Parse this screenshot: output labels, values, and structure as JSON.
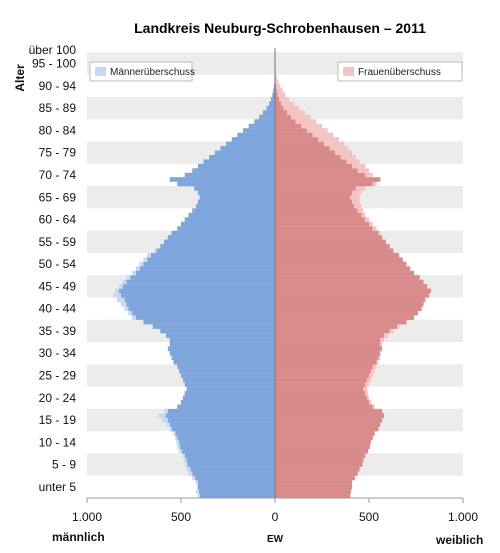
{
  "chart_data": {
    "type": "bar",
    "orientation": "horizontal",
    "title": "Landkreis Neuburg-Schrobenhausen – 2011",
    "ylabel": "Alter",
    "xlabel": "EW",
    "left_label": "männlich",
    "right_label": "weiblich",
    "xlim": [
      -1000,
      1000
    ],
    "x_ticks": [
      {
        "value": -1000,
        "label": "1.000"
      },
      {
        "value": -500,
        "label": "500"
      },
      {
        "value": 0,
        "label": "0"
      },
      {
        "value": 500,
        "label": "500"
      },
      {
        "value": 1000,
        "label": "1.000"
      }
    ],
    "age_group_labels": [
      "unter 5",
      "5 - 9",
      "10 - 14",
      "15 - 19",
      "20 - 24",
      "25 - 29",
      "30 - 34",
      "35 - 39",
      "40 - 44",
      "45 - 49",
      "50 - 54",
      "55 - 59",
      "60 - 64",
      "65 - 69",
      "70 - 74",
      "75 - 79",
      "80 - 84",
      "85 - 89",
      "90 - 94",
      "95 - 100",
      "über 100"
    ],
    "legend": [
      {
        "label": "Männerüberschuss",
        "color": "#c5d9f1",
        "position": "top-left"
      },
      {
        "label": "Frauenüberschuss",
        "color": "#f2c4c4",
        "position": "top-right"
      }
    ],
    "colors": {
      "male": "#7ea6dc",
      "female": "#d98a8a",
      "male_surplus": "#c5d9f1",
      "female_surplus": "#f2c4c4",
      "band": "#ececec"
    },
    "ages": [
      0,
      1,
      2,
      3,
      4,
      5,
      6,
      7,
      8,
      9,
      10,
      11,
      12,
      13,
      14,
      15,
      16,
      17,
      18,
      19,
      20,
      21,
      22,
      23,
      24,
      25,
      26,
      27,
      28,
      29,
      30,
      31,
      32,
      33,
      34,
      35,
      36,
      37,
      38,
      39,
      40,
      41,
      42,
      43,
      44,
      45,
      46,
      47,
      48,
      49,
      50,
      51,
      52,
      53,
      54,
      55,
      56,
      57,
      58,
      59,
      60,
      61,
      62,
      63,
      64,
      65,
      66,
      67,
      68,
      69,
      70,
      71,
      72,
      73,
      74,
      75,
      76,
      77,
      78,
      79,
      80,
      81,
      82,
      83,
      84,
      85,
      86,
      87,
      88,
      89,
      90,
      91,
      92,
      93,
      94,
      95,
      96,
      97,
      98,
      99,
      100
    ],
    "series": [
      {
        "name": "männlich",
        "values": [
          410,
          420,
          415,
          420,
          440,
          460,
          470,
          480,
          485,
          490,
          510,
          520,
          525,
          530,
          540,
          560,
          580,
          600,
          620,
          590,
          520,
          500,
          490,
          480,
          470,
          480,
          490,
          500,
          510,
          520,
          540,
          550,
          560,
          570,
          560,
          560,
          580,
          610,
          650,
          700,
          760,
          780,
          800,
          820,
          840,
          860,
          850,
          830,
          810,
          790,
          760,
          740,
          720,
          700,
          680,
          640,
          610,
          590,
          570,
          550,
          520,
          500,
          480,
          460,
          440,
          420,
          410,
          400,
          410,
          430,
          520,
          560,
          480,
          440,
          410,
          380,
          350,
          320,
          290,
          260,
          230,
          200,
          170,
          140,
          110,
          85,
          65,
          45,
          32,
          22,
          14,
          9,
          6,
          3,
          2,
          1,
          1,
          0,
          0,
          0,
          0
        ]
      },
      {
        "name": "weiblich",
        "values": [
          400,
          405,
          410,
          410,
          425,
          440,
          450,
          465,
          470,
          480,
          495,
          505,
          510,
          520,
          530,
          550,
          560,
          570,
          580,
          570,
          530,
          510,
          500,
          495,
          490,
          500,
          510,
          520,
          530,
          540,
          550,
          560,
          560,
          570,
          570,
          580,
          600,
          630,
          660,
          700,
          740,
          760,
          780,
          790,
          800,
          820,
          830,
          810,
          790,
          770,
          740,
          720,
          700,
          680,
          660,
          630,
          610,
          590,
          570,
          560,
          540,
          520,
          500,
          480,
          470,
          460,
          450,
          450,
          460,
          480,
          540,
          560,
          520,
          500,
          480,
          450,
          430,
          410,
          390,
          370,
          340,
          310,
          280,
          250,
          220,
          190,
          160,
          130,
          100,
          75,
          55,
          40,
          28,
          18,
          10,
          6,
          3,
          2,
          1,
          1,
          0
        ]
      }
    ]
  }
}
